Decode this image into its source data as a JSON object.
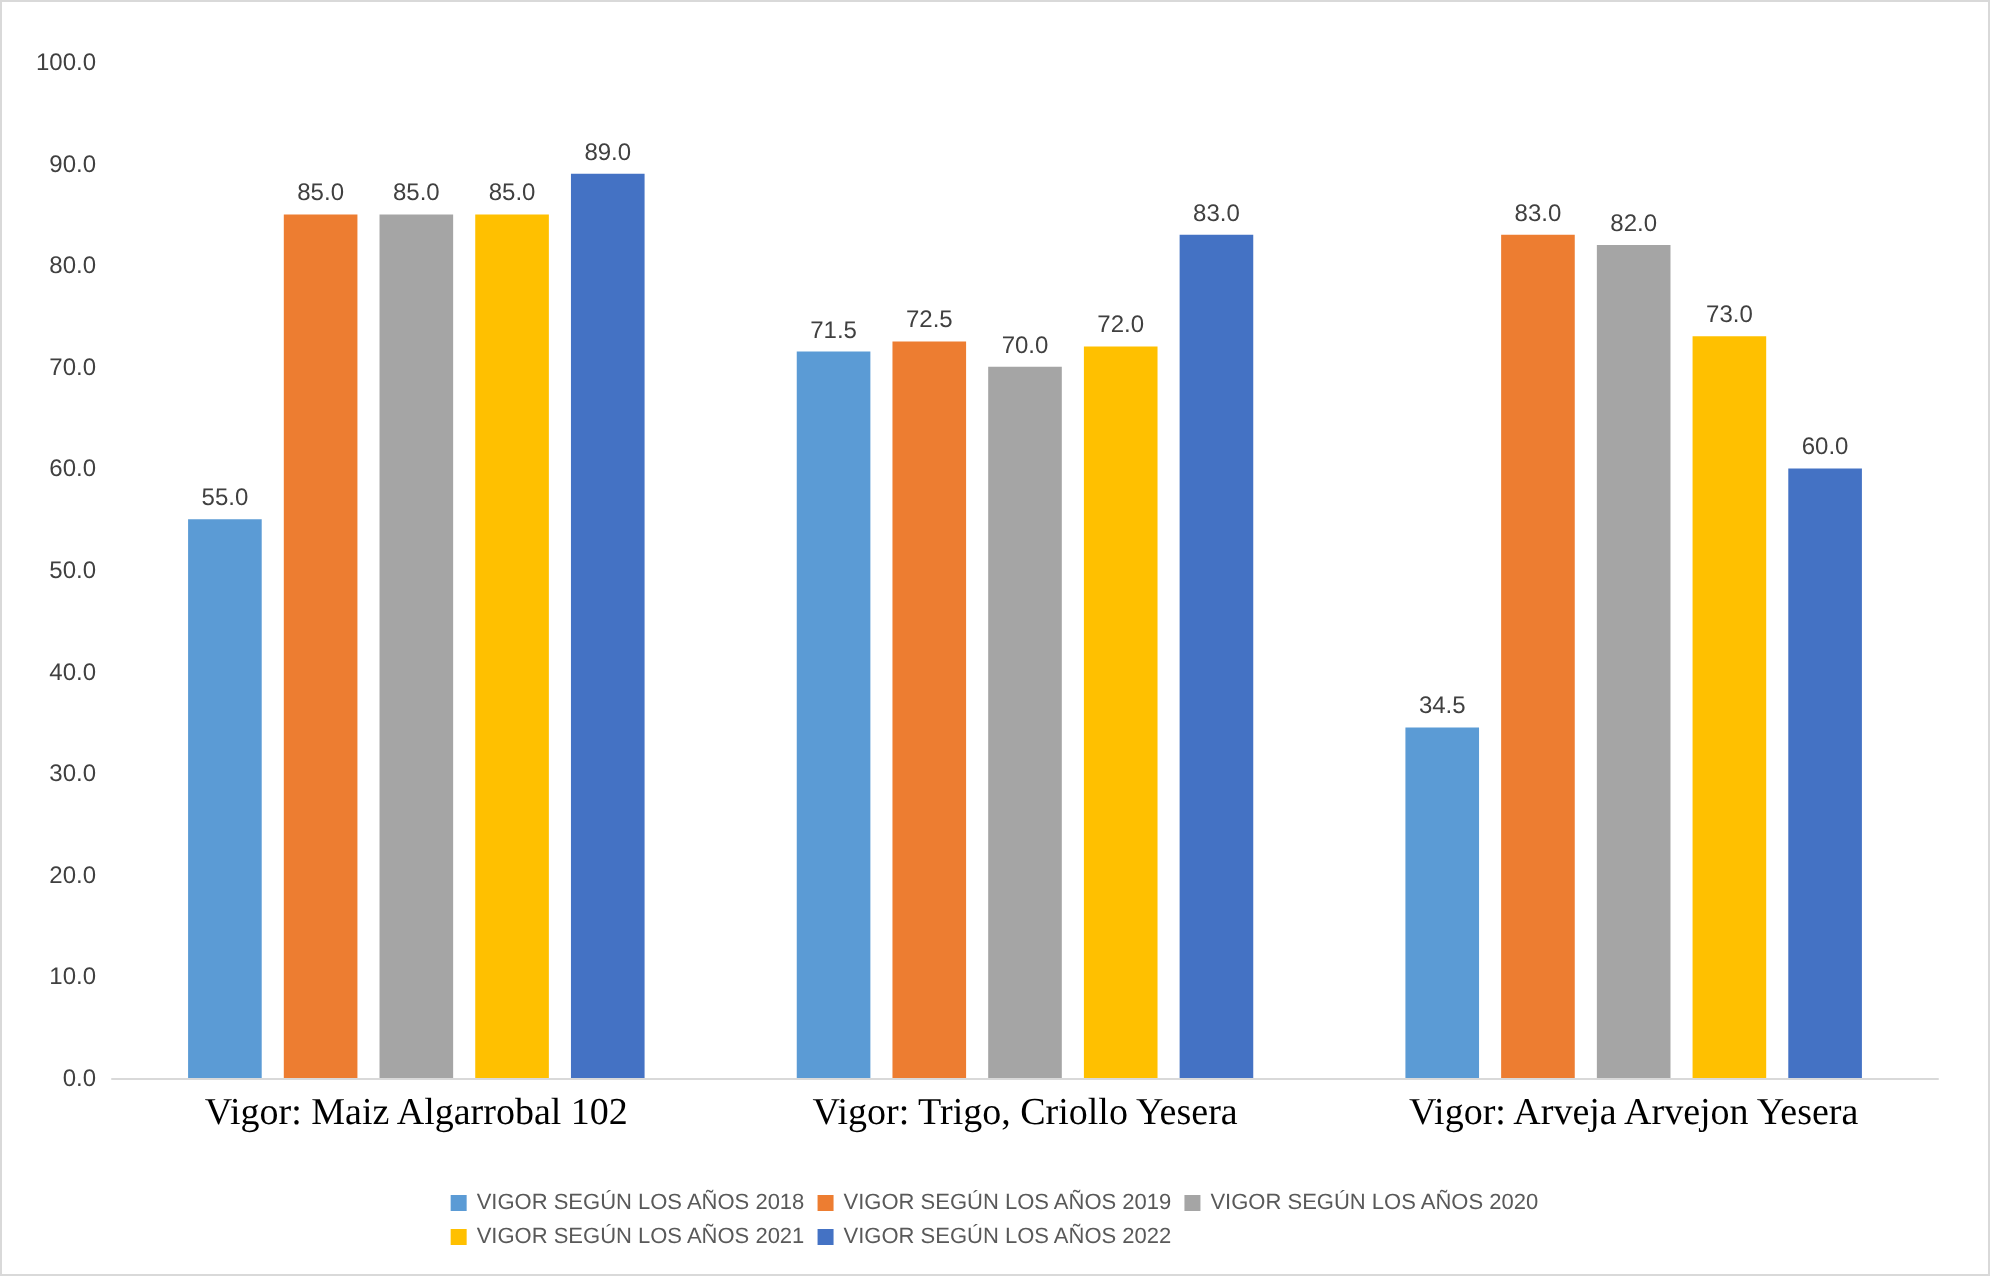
{
  "chart_data": {
    "type": "bar",
    "categories": [
      "Vigor: Maiz Algarrobal 102",
      "Vigor: Trigo, Criollo Yesera",
      "Vigor: Arveja Arvejon Yesera"
    ],
    "series": [
      {
        "name": "VIGOR SEGÚN LOS AÑOS 2018",
        "color": "#5b9bd5",
        "values": [
          55,
          71.5,
          34.5
        ],
        "value_labels": [
          "55.0",
          "71.5",
          "34.5"
        ]
      },
      {
        "name": "VIGOR SEGÚN LOS AÑOS 2019",
        "color": "#ed7d31",
        "values": [
          85,
          72.5,
          83
        ],
        "value_labels": [
          "85.0",
          "72.5",
          "83.0"
        ]
      },
      {
        "name": "VIGOR SEGÚN LOS AÑOS 2020",
        "color": "#a5a5a5",
        "values": [
          85,
          70,
          82
        ],
        "value_labels": [
          "85.0",
          "70.0",
          "82.0"
        ]
      },
      {
        "name": "VIGOR SEGÚN LOS AÑOS 2021",
        "color": "#ffc000",
        "values": [
          85,
          72,
          73
        ],
        "value_labels": [
          "85.0",
          "72.0",
          "73.0"
        ]
      },
      {
        "name": "VIGOR SEGÚN LOS AÑOS 2022",
        "color": "#4472c4",
        "values": [
          89,
          83,
          60
        ],
        "value_labels": [
          "89.0",
          "83.0",
          "60.0"
        ]
      }
    ],
    "ylim": [
      0,
      100
    ],
    "yticks": [
      {
        "value": 0,
        "label": "0.0"
      },
      {
        "value": 10,
        "label": "10.0"
      },
      {
        "value": 20,
        "label": "20.0"
      },
      {
        "value": 30,
        "label": "30.0"
      },
      {
        "value": 40,
        "label": "40.0"
      },
      {
        "value": 50,
        "label": "50.0"
      },
      {
        "value": 60,
        "label": "60.0"
      },
      {
        "value": 70,
        "label": "70.0"
      },
      {
        "value": 80,
        "label": "80.0"
      },
      {
        "value": 90,
        "label": "90.0"
      },
      {
        "value": 100,
        "label": "100.0"
      }
    ],
    "grid": false,
    "legend": "bottom"
  }
}
